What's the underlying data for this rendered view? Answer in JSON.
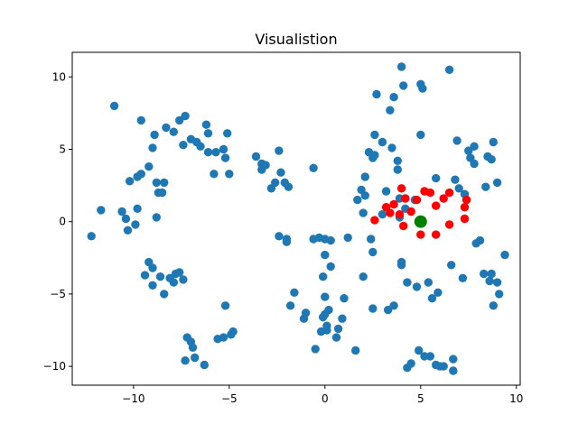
{
  "chart_data": {
    "type": "scatter",
    "title": "Visualistion",
    "xlabel": "",
    "ylabel": "",
    "xlim": [
      -13.2,
      10.2
    ],
    "ylim": [
      -11.3,
      11.7
    ],
    "xticks": [
      -10,
      -5,
      0,
      5,
      10
    ],
    "xtick_labels": [
      "−10",
      "−5",
      "0",
      "5",
      "10"
    ],
    "yticks": [
      -10,
      -5,
      0,
      5,
      10
    ],
    "ytick_labels": [
      "−10",
      "−5",
      "0",
      "5",
      "10"
    ],
    "grid": false,
    "series": [
      {
        "color": "#1f77b4",
        "points": [
          [
            -12.2,
            -1.0
          ],
          [
            -11.7,
            0.8
          ],
          [
            -11.0,
            8.0
          ],
          [
            -10.6,
            0.7
          ],
          [
            -10.4,
            0.2
          ],
          [
            -10.3,
            -0.6
          ],
          [
            -10.2,
            2.8
          ],
          [
            -9.9,
            -0.2
          ],
          [
            -9.8,
            0.9
          ],
          [
            -9.8,
            3.1
          ],
          [
            -9.6,
            7.0
          ],
          [
            -9.6,
            3.3
          ],
          [
            -9.4,
            -3.7
          ],
          [
            -9.2,
            3.8
          ],
          [
            -9.2,
            -2.8
          ],
          [
            -9.0,
            -4.4
          ],
          [
            -9.0,
            -3.2
          ],
          [
            -9.0,
            5.1
          ],
          [
            -8.9,
            6.0
          ],
          [
            -8.8,
            2.7
          ],
          [
            -8.8,
            0.3
          ],
          [
            -8.7,
            2.0
          ],
          [
            -8.6,
            -3.8
          ],
          [
            -8.5,
            2.0
          ],
          [
            -8.4,
            2.7
          ],
          [
            -8.4,
            -5.0
          ],
          [
            -8.3,
            6.5
          ],
          [
            -8.1,
            -3.9
          ],
          [
            -7.9,
            6.2
          ],
          [
            -7.9,
            -4.2
          ],
          [
            -7.8,
            -3.6
          ],
          [
            -7.6,
            -3.5
          ],
          [
            -7.6,
            7.0
          ],
          [
            -7.4,
            -4.0
          ],
          [
            -7.4,
            5.3
          ],
          [
            -7.3,
            7.3
          ],
          [
            -7.3,
            -9.6
          ],
          [
            -7.2,
            -8.0
          ],
          [
            -7.0,
            -8.3
          ],
          [
            -7.0,
            5.7
          ],
          [
            -6.9,
            -8.7
          ],
          [
            -6.8,
            -9.4
          ],
          [
            -6.7,
            5.5
          ],
          [
            -6.5,
            5.2
          ],
          [
            -6.3,
            -9.9
          ],
          [
            -6.2,
            6.7
          ],
          [
            -6.1,
            6.1
          ],
          [
            -6.1,
            4.8
          ],
          [
            -5.8,
            3.3
          ],
          [
            -5.7,
            4.8
          ],
          [
            -5.6,
            -8.1
          ],
          [
            -5.3,
            -8.0
          ],
          [
            -5.3,
            5.0
          ],
          [
            -5.2,
            -5.8
          ],
          [
            -5.2,
            4.4
          ],
          [
            -5.1,
            6.1
          ],
          [
            -5.0,
            3.3
          ],
          [
            -4.9,
            -7.8
          ],
          [
            -4.8,
            -7.6
          ],
          [
            -3.6,
            4.5
          ],
          [
            -3.3,
            4.0
          ],
          [
            -3.3,
            3.6
          ],
          [
            -3.1,
            3.9
          ],
          [
            -2.8,
            2.3
          ],
          [
            -2.6,
            2.7
          ],
          [
            -2.4,
            4.9
          ],
          [
            -2.4,
            -1.0
          ],
          [
            -2.3,
            3.4
          ],
          [
            -2.1,
            2.7
          ],
          [
            -2.0,
            -1.2
          ],
          [
            -2.0,
            -1.4
          ],
          [
            -1.9,
            2.4
          ],
          [
            -1.8,
            -5.8
          ],
          [
            -1.6,
            -4.9
          ],
          [
            -1.1,
            -6.7
          ],
          [
            -1.0,
            -6.3
          ],
          [
            -0.6,
            3.7
          ],
          [
            -0.6,
            -1.2
          ],
          [
            -0.5,
            -8.8
          ],
          [
            -0.3,
            -1.1
          ],
          [
            -0.2,
            -7.6
          ],
          [
            -0.1,
            -3.8
          ],
          [
            -0.1,
            -6.6
          ],
          [
            0.0,
            -2.3
          ],
          [
            0.0,
            -5.2
          ],
          [
            0.0,
            -6.4
          ],
          [
            0.0,
            -1.2
          ],
          [
            0.1,
            -7.2
          ],
          [
            0.1,
            -7.5
          ],
          [
            0.2,
            -6.1
          ],
          [
            0.3,
            -3.1
          ],
          [
            0.3,
            -1.3
          ],
          [
            0.6,
            -8.0
          ],
          [
            0.7,
            -7.4
          ],
          [
            0.9,
            -6.7
          ],
          [
            1.0,
            -5.3
          ],
          [
            1.2,
            -1.1
          ],
          [
            1.6,
            -8.9
          ],
          [
            1.7,
            1.5
          ],
          [
            1.9,
            2.2
          ],
          [
            2.0,
            -3.8
          ],
          [
            2.0,
            0.6
          ],
          [
            2.1,
            3.1
          ],
          [
            2.1,
            1.8
          ],
          [
            2.3,
            4.8
          ],
          [
            2.4,
            -1.2
          ],
          [
            2.5,
            -2.1
          ],
          [
            2.5,
            4.4
          ],
          [
            2.5,
            -6.0
          ],
          [
            2.6,
            6.0
          ],
          [
            2.6,
            4.6
          ],
          [
            2.7,
            8.8
          ],
          [
            3.0,
            5.5
          ],
          [
            3.0,
            0.5
          ],
          [
            3.2,
            2.1
          ],
          [
            3.3,
            -6.1
          ],
          [
            3.4,
            7.7
          ],
          [
            3.5,
            5.1
          ],
          [
            3.6,
            -5.8
          ],
          [
            3.6,
            8.6
          ],
          [
            3.8,
            3.6
          ],
          [
            3.8,
            4.2
          ],
          [
            3.9,
            1.6
          ],
          [
            3.9,
            0.3
          ],
          [
            4.0,
            10.7
          ],
          [
            4.0,
            -2.8
          ],
          [
            4.0,
            -3.0
          ],
          [
            4.1,
            9.4
          ],
          [
            4.2,
            0.9
          ],
          [
            4.3,
            -10.1
          ],
          [
            4.3,
            -4.2
          ],
          [
            4.5,
            -9.8
          ],
          [
            4.7,
            1.5
          ],
          [
            4.8,
            -4.5
          ],
          [
            4.9,
            -8.9
          ],
          [
            5.0,
            9.5
          ],
          [
            5.0,
            6.0
          ],
          [
            5.1,
            9.2
          ],
          [
            5.2,
            -9.3
          ],
          [
            5.4,
            -4.2
          ],
          [
            5.5,
            -9.3
          ],
          [
            5.6,
            -5.3
          ],
          [
            5.8,
            3.0
          ],
          [
            5.8,
            -9.9
          ],
          [
            5.9,
            -4.9
          ],
          [
            6.0,
            -10.0
          ],
          [
            6.2,
            -10.0
          ],
          [
            6.5,
            10.5
          ],
          [
            6.6,
            -3.0
          ],
          [
            6.7,
            -10.3
          ],
          [
            6.7,
            -9.5
          ],
          [
            6.8,
            2.9
          ],
          [
            6.9,
            5.6
          ],
          [
            7.0,
            2.3
          ],
          [
            7.2,
            -3.9
          ],
          [
            7.3,
            1.9
          ],
          [
            7.5,
            4.9
          ],
          [
            7.6,
            4.4
          ],
          [
            7.8,
            4.0
          ],
          [
            7.8,
            5.2
          ],
          [
            7.9,
            -1.5
          ],
          [
            8.1,
            -1.3
          ],
          [
            8.3,
            -3.6
          ],
          [
            8.4,
            2.4
          ],
          [
            8.5,
            4.5
          ],
          [
            8.6,
            -4.1
          ],
          [
            8.7,
            -3.6
          ],
          [
            8.7,
            4.3
          ],
          [
            8.8,
            -5.8
          ],
          [
            8.8,
            5.5
          ],
          [
            9.0,
            2.7
          ],
          [
            9.0,
            -4.2
          ],
          [
            9.1,
            -5.0
          ],
          [
            9.4,
            -2.3
          ]
        ]
      },
      {
        "color": "#ff0000",
        "points": [
          [
            2.6,
            0.1
          ],
          [
            3.2,
            1.0
          ],
          [
            3.4,
            0.6
          ],
          [
            3.6,
            1.2
          ],
          [
            3.9,
            0.5
          ],
          [
            4.0,
            2.3
          ],
          [
            4.1,
            -0.3
          ],
          [
            4.2,
            1.6
          ],
          [
            4.5,
            0.7
          ],
          [
            4.8,
            1.5
          ],
          [
            5.0,
            -0.9
          ],
          [
            5.2,
            2.1
          ],
          [
            5.5,
            2.0
          ],
          [
            5.8,
            -0.9
          ],
          [
            5.8,
            1.1
          ],
          [
            6.2,
            1.6
          ],
          [
            6.5,
            -0.2
          ],
          [
            6.5,
            2.0
          ],
          [
            7.3,
            0.2
          ],
          [
            7.3,
            1.0
          ],
          [
            7.4,
            1.5
          ]
        ]
      },
      {
        "color": "#008000",
        "points": [
          [
            5.0,
            0.0
          ]
        ]
      }
    ]
  }
}
